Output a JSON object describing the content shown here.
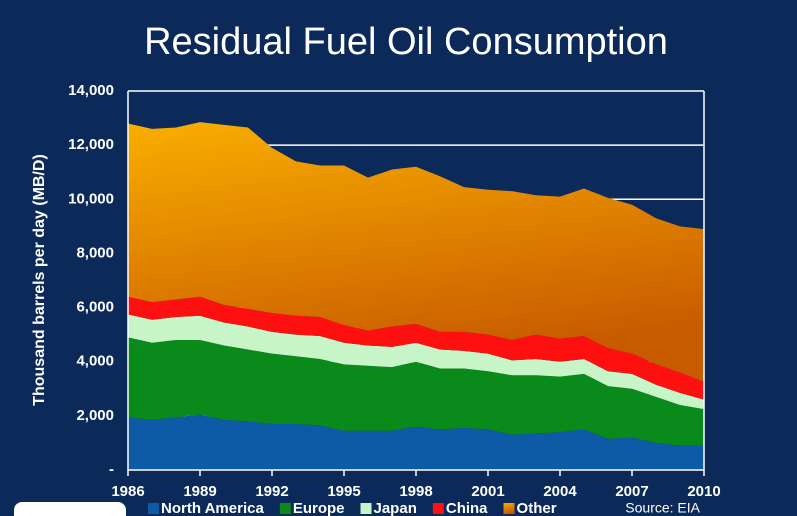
{
  "chart_data": {
    "type": "stacked_area",
    "title": "Residual Fuel Oil Consumption",
    "y_label": "Thousand barrels per day (MB/D)",
    "source": "Source: EIA",
    "x": [
      1986,
      1987,
      1988,
      1989,
      1990,
      1991,
      1992,
      1993,
      1994,
      1995,
      1996,
      1997,
      1998,
      1999,
      2000,
      2001,
      2002,
      2003,
      2004,
      2005,
      2006,
      2007,
      2008,
      2009,
      2010
    ],
    "series": [
      {
        "name": "North America",
        "color": "#0d5aa7",
        "values": [
          1950,
          1850,
          1950,
          2050,
          1850,
          1800,
          1700,
          1700,
          1650,
          1450,
          1450,
          1450,
          1600,
          1500,
          1550,
          1500,
          1300,
          1350,
          1400,
          1500,
          1150,
          1200,
          1000,
          900,
          900
        ]
      },
      {
        "name": "Europe",
        "color": "#0a8a1a",
        "values": [
          2950,
          2850,
          2850,
          2750,
          2750,
          2650,
          2600,
          2500,
          2450,
          2450,
          2400,
          2350,
          2400,
          2250,
          2200,
          2150,
          2200,
          2150,
          2050,
          2050,
          1950,
          1800,
          1700,
          1500,
          1350
        ]
      },
      {
        "name": "Japan",
        "color": "#c8f5c8",
        "values": [
          850,
          850,
          850,
          900,
          850,
          850,
          800,
          800,
          850,
          800,
          750,
          750,
          700,
          700,
          650,
          650,
          550,
          600,
          550,
          550,
          550,
          550,
          450,
          450,
          350
        ]
      },
      {
        "name": "China",
        "color": "#ff1010",
        "values": [
          650,
          650,
          650,
          700,
          650,
          650,
          700,
          700,
          700,
          650,
          550,
          750,
          700,
          650,
          700,
          700,
          750,
          900,
          850,
          850,
          850,
          750,
          750,
          750,
          650
        ]
      },
      {
        "name": "Other",
        "color": "#f5a300",
        "values": [
          6400,
          6400,
          6350,
          6450,
          6650,
          6700,
          6100,
          5700,
          5600,
          5900,
          5650,
          5800,
          5800,
          5750,
          5350,
          5350,
          5500,
          5150,
          5250,
          5450,
          5550,
          5500,
          5400,
          5400,
          5650
        ]
      }
    ],
    "xlim": [
      1986,
      2010
    ],
    "xticks": [
      1986,
      1989,
      1992,
      1995,
      1998,
      2001,
      2004,
      2007,
      2010
    ],
    "ylim": [
      0,
      14000
    ],
    "yticks": [
      {
        "value": 0,
        "label": "-"
      },
      {
        "value": 2000,
        "label": "2,000"
      },
      {
        "value": 4000,
        "label": "4,000"
      },
      {
        "value": 6000,
        "label": "6,000"
      },
      {
        "value": 8000,
        "label": "8,000"
      },
      {
        "value": 10000,
        "label": "10,000"
      },
      {
        "value": 12000,
        "label": "12,000"
      },
      {
        "value": 14000,
        "label": "14,000"
      }
    ],
    "grid": true
  }
}
